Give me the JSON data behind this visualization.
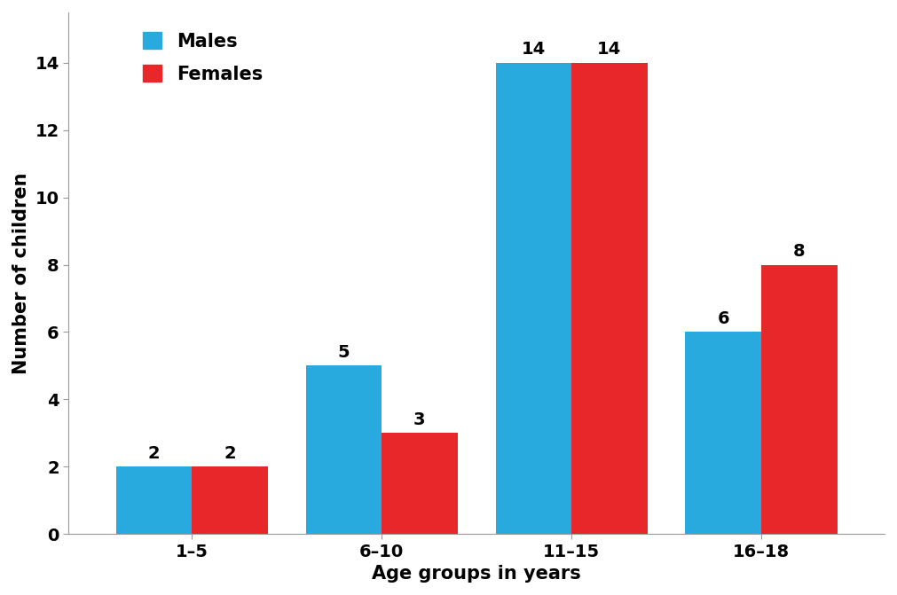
{
  "categories": [
    "1–5",
    "6–10",
    "11–15",
    "16–18"
  ],
  "males": [
    2,
    5,
    14,
    6
  ],
  "females": [
    2,
    3,
    14,
    8
  ],
  "male_color": "#29AADE",
  "female_color": "#E8272A",
  "xlabel": "Age groups in years",
  "ylabel": "Number of children",
  "ylim": [
    0,
    15.5
  ],
  "yticks": [
    0,
    2,
    4,
    6,
    8,
    10,
    12,
    14
  ],
  "bar_width": 0.4,
  "legend_labels": [
    "Males",
    "Females"
  ],
  "label_fontsize": 15,
  "tick_fontsize": 14,
  "annotation_fontsize": 14,
  "legend_fontsize": 15,
  "background_color": "#ffffff"
}
